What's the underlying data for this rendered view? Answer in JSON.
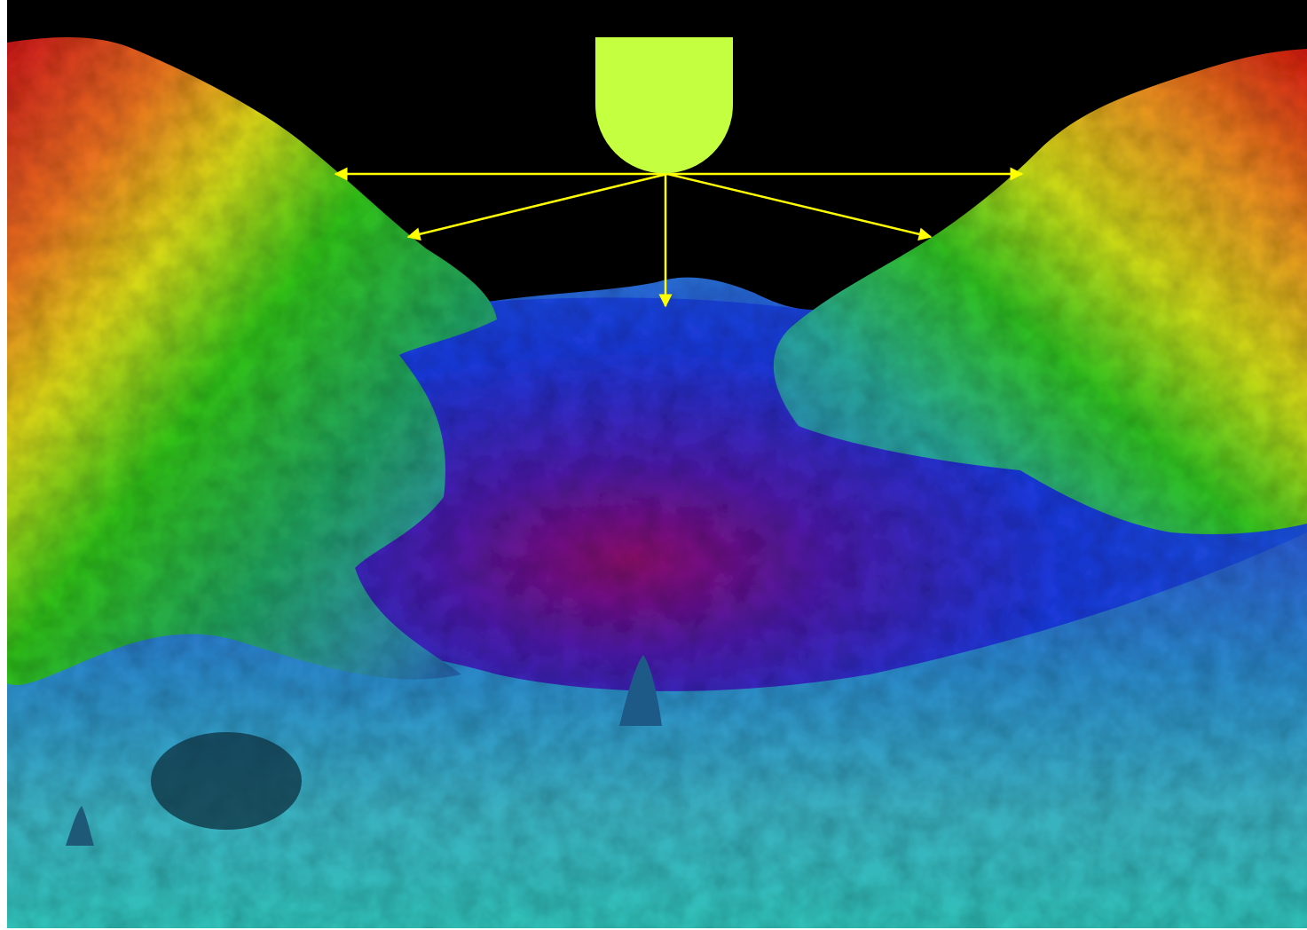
{
  "colors": {
    "background": "#000000",
    "vessel": "#c4ff40",
    "sonar_beams": "#ffff00",
    "depth_shallow": "#d01810",
    "depth_mid_high": "#e8e010",
    "depth_mid": "#20c010",
    "depth_mid_low": "#30a8b0",
    "depth_low": "#1040d0",
    "depth_deepest": "#7a0860"
  },
  "elements": {
    "vessel_icon": "ship-hull-icon",
    "beam_count": 5
  }
}
